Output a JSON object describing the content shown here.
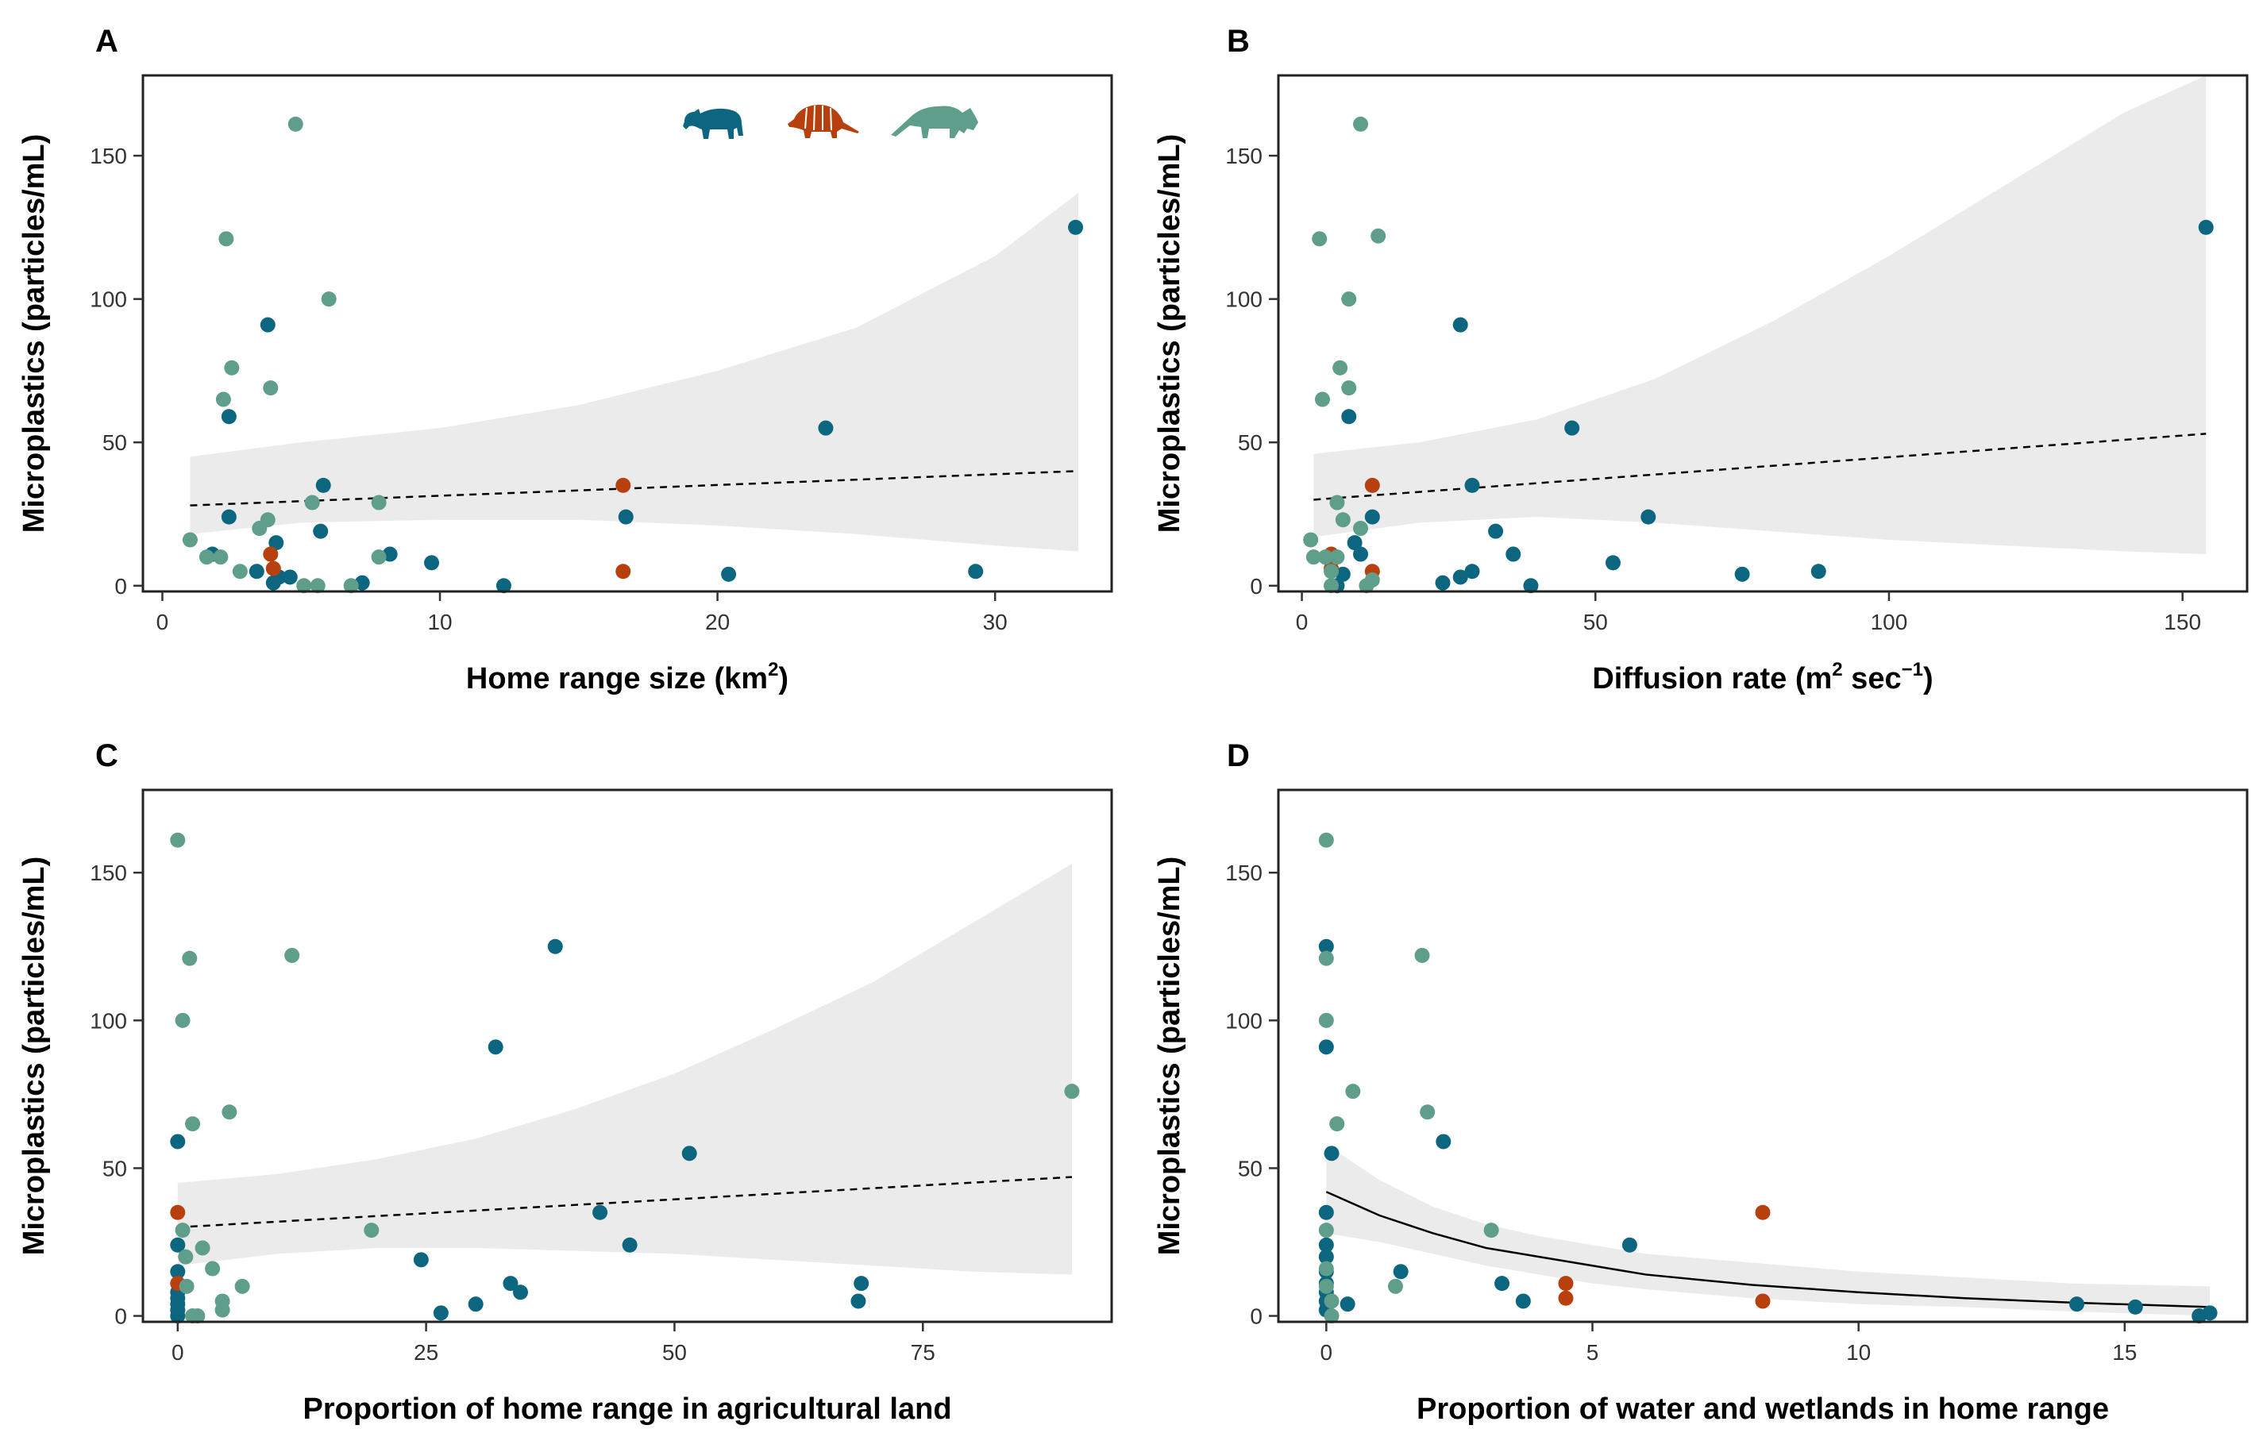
{
  "colors": {
    "species_teal": "#0d6680",
    "species_orange": "#b8400e",
    "species_green": "#5f9e8a",
    "ribbon": "#ebebeb",
    "fit": "#000000"
  },
  "legend_icons": [
    "tapir-icon",
    "armadillo-icon",
    "anteater-icon"
  ],
  "chart_data": [
    {
      "type": "scatter",
      "panel": "A",
      "xlabel_main": "Home range size (km",
      "xlabel_sup": "2",
      "xlabel_tail": ")",
      "ylabel": "Microplastics (particles/mL)",
      "xlim": [
        -0.7,
        34.2
      ],
      "ylim": [
        -2,
        178
      ],
      "xticks": [
        0,
        10,
        20,
        30
      ],
      "yticks": [
        0,
        50,
        100,
        150
      ],
      "grid": false,
      "fit": {
        "style": "dashed",
        "x": [
          1,
          33
        ],
        "y": [
          28,
          40
        ],
        "ribbon_x": [
          1,
          5,
          10,
          15,
          20,
          25,
          30,
          33
        ],
        "ribbon_lo": [
          18,
          22,
          23,
          23,
          21,
          18,
          14,
          12
        ],
        "ribbon_hi": [
          45,
          50,
          55,
          63,
          75,
          90,
          115,
          137
        ]
      },
      "series": [
        {
          "color_key": "species_teal",
          "points": [
            [
              1.8,
              11
            ],
            [
              3.4,
              5
            ],
            [
              3.8,
              91
            ],
            [
              4.0,
              1
            ],
            [
              4.1,
              15
            ],
            [
              4.2,
              3
            ],
            [
              4.6,
              3
            ],
            [
              2.4,
              59
            ],
            [
              2.4,
              24
            ],
            [
              5.7,
              19
            ],
            [
              5.8,
              35
            ],
            [
              7.2,
              1
            ],
            [
              8.2,
              11
            ],
            [
              9.7,
              8
            ],
            [
              12.3,
              0
            ],
            [
              16.7,
              24
            ],
            [
              20.4,
              4
            ],
            [
              23.9,
              55
            ],
            [
              29.3,
              5
            ],
            [
              32.9,
              125
            ]
          ]
        },
        {
          "color_key": "species_orange",
          "points": [
            [
              3.9,
              11
            ],
            [
              4.0,
              6
            ],
            [
              16.6,
              35
            ],
            [
              16.6,
              5
            ]
          ]
        },
        {
          "color_key": "species_green",
          "points": [
            [
              1.0,
              16
            ],
            [
              1.6,
              10
            ],
            [
              2.1,
              10
            ],
            [
              2.2,
              65
            ],
            [
              2.3,
              121
            ],
            [
              2.5,
              76
            ],
            [
              2.8,
              5
            ],
            [
              3.5,
              20
            ],
            [
              3.8,
              23
            ],
            [
              3.9,
              69
            ],
            [
              4.8,
              161
            ],
            [
              5.1,
              0
            ],
            [
              5.4,
              29
            ],
            [
              5.6,
              0
            ],
            [
              6.0,
              100
            ],
            [
              6.8,
              0
            ],
            [
              7.8,
              29
            ],
            [
              7.8,
              10
            ]
          ]
        }
      ]
    },
    {
      "type": "scatter",
      "panel": "B",
      "xlabel_main": "Diffusion rate (m",
      "xlabel_sup": "2",
      "xlabel_tail": " sec",
      "xlabel_sup2": "−1",
      "xlabel_tail2": ")",
      "ylabel": "Microplastics (particles/mL)",
      "xlim": [
        -4,
        161
      ],
      "ylim": [
        -2,
        178
      ],
      "xticks": [
        0,
        50,
        100,
        150
      ],
      "yticks": [
        0,
        50,
        100,
        150
      ],
      "grid": false,
      "fit": {
        "style": "dashed",
        "x": [
          2,
          154
        ],
        "y": [
          30,
          53
        ],
        "ribbon_x": [
          2,
          20,
          40,
          60,
          80,
          100,
          120,
          140,
          154
        ],
        "ribbon_lo": [
          17,
          22,
          24,
          22,
          19,
          16,
          14,
          12,
          11
        ],
        "ribbon_hi": [
          46,
          50,
          58,
          72,
          92,
          115,
          140,
          165,
          178
        ]
      },
      "series": [
        {
          "color_key": "species_teal",
          "points": [
            [
              6,
              0
            ],
            [
              7,
              4
            ],
            [
              8,
              59
            ],
            [
              9,
              15
            ],
            [
              10,
              11
            ],
            [
              12,
              24
            ],
            [
              24,
              1
            ],
            [
              27,
              3
            ],
            [
              27,
              91
            ],
            [
              29,
              5
            ],
            [
              29,
              35
            ],
            [
              33,
              19
            ],
            [
              36,
              11
            ],
            [
              39,
              0
            ],
            [
              46,
              55
            ],
            [
              53,
              8
            ],
            [
              59,
              24
            ],
            [
              75,
              4
            ],
            [
              88,
              5
            ],
            [
              154,
              125
            ]
          ]
        },
        {
          "color_key": "species_orange",
          "points": [
            [
              5,
              11
            ],
            [
              5,
              6
            ],
            [
              12,
              35
            ],
            [
              12,
              5
            ]
          ]
        },
        {
          "color_key": "species_green",
          "points": [
            [
              1.5,
              16
            ],
            [
              2,
              10
            ],
            [
              3,
              121
            ],
            [
              3.5,
              65
            ],
            [
              4,
              10
            ],
            [
              5,
              0
            ],
            [
              5,
              5
            ],
            [
              6,
              29
            ],
            [
              6,
              10
            ],
            [
              6.5,
              76
            ],
            [
              7,
              23
            ],
            [
              8,
              69
            ],
            [
              8,
              100
            ],
            [
              10,
              161
            ],
            [
              10,
              20
            ],
            [
              11,
              0
            ],
            [
              12,
              2
            ],
            [
              13,
              122
            ]
          ]
        }
      ]
    },
    {
      "type": "scatter",
      "panel": "C",
      "xlabel_main": "Proportion of home range in agricultural land",
      "ylabel": "Microplastics (particles/mL)",
      "xlim": [
        -3.5,
        94
      ],
      "ylim": [
        -2,
        178
      ],
      "xticks": [
        0,
        25,
        50,
        75
      ],
      "yticks": [
        0,
        50,
        100,
        150
      ],
      "grid": false,
      "fit": {
        "style": "dashed",
        "x": [
          0,
          90
        ],
        "y": [
          30,
          47
        ],
        "ribbon_x": [
          0,
          10,
          20,
          30,
          40,
          50,
          60,
          70,
          80,
          90
        ],
        "ribbon_lo": [
          17,
          21,
          23,
          23,
          22,
          21,
          19,
          17,
          15,
          14
        ],
        "ribbon_hi": [
          45,
          48,
          53,
          60,
          70,
          82,
          97,
          113,
          133,
          153
        ]
      },
      "series": [
        {
          "color_key": "species_teal",
          "points": [
            [
              0,
              0
            ],
            [
              0,
              2
            ],
            [
              0,
              4
            ],
            [
              0,
              6
            ],
            [
              0,
              8
            ],
            [
              0,
              15
            ],
            [
              0,
              24
            ],
            [
              0,
              59
            ],
            [
              24.5,
              19
            ],
            [
              26.5,
              1
            ],
            [
              30,
              4
            ],
            [
              32,
              91
            ],
            [
              33.5,
              11
            ],
            [
              34.5,
              8
            ],
            [
              38,
              125
            ],
            [
              42.5,
              35
            ],
            [
              45.5,
              24
            ],
            [
              51.5,
              55
            ],
            [
              68.5,
              5
            ],
            [
              68.8,
              11
            ]
          ]
        },
        {
          "color_key": "species_orange",
          "points": [
            [
              0,
              35
            ],
            [
              0,
              11
            ]
          ]
        },
        {
          "color_key": "species_green",
          "points": [
            [
              0,
              161
            ],
            [
              0.5,
              100
            ],
            [
              0.5,
              29
            ],
            [
              0.8,
              20
            ],
            [
              0.9,
              10
            ],
            [
              1.2,
              121
            ],
            [
              1.5,
              65
            ],
            [
              1.5,
              0
            ],
            [
              2,
              0
            ],
            [
              2.5,
              23
            ],
            [
              3.5,
              16
            ],
            [
              4.5,
              5
            ],
            [
              4.5,
              2
            ],
            [
              5.2,
              69
            ],
            [
              6.5,
              10
            ],
            [
              11.5,
              122
            ],
            [
              19.5,
              29
            ],
            [
              90,
              76
            ]
          ]
        }
      ]
    },
    {
      "type": "scatter",
      "panel": "D",
      "xlabel_main": "Proportion of water and wetlands in home range",
      "ylabel": "Microplastics (particles/mL)",
      "xlim": [
        -0.9,
        17.3
      ],
      "ylim": [
        -2,
        178
      ],
      "xticks": [
        0,
        5,
        10,
        15
      ],
      "yticks": [
        0,
        50,
        100,
        150
      ],
      "grid": false,
      "fit": {
        "style": "solid",
        "x": [
          0,
          1,
          2,
          3,
          4,
          5,
          6,
          8,
          10,
          12,
          14,
          16.6
        ],
        "y": [
          42,
          34,
          28,
          23,
          20,
          17,
          14,
          10.5,
          8,
          6,
          4.5,
          3
        ],
        "ribbon_x": [
          0,
          1,
          2,
          3,
          4,
          5,
          6,
          8,
          10,
          12,
          14,
          16.6
        ],
        "ribbon_lo": [
          28,
          25,
          21,
          17,
          14,
          11,
          9,
          6,
          4,
          3,
          1.5,
          0
        ],
        "ribbon_hi": [
          58,
          46,
          37,
          31,
          27,
          24,
          21,
          18,
          15,
          13,
          11,
          10
        ]
      },
      "series": [
        {
          "color_key": "species_teal",
          "points": [
            [
              0,
              125
            ],
            [
              0,
              91
            ],
            [
              0,
              35
            ],
            [
              0,
              24
            ],
            [
              0,
              20
            ],
            [
              0,
              15
            ],
            [
              0,
              11
            ],
            [
              0,
              8
            ],
            [
              0,
              5
            ],
            [
              0,
              2
            ],
            [
              0.1,
              55
            ],
            [
              0.4,
              4
            ],
            [
              1.4,
              15
            ],
            [
              2.2,
              59
            ],
            [
              3.3,
              11
            ],
            [
              3.7,
              5
            ],
            [
              5.7,
              24
            ],
            [
              14.1,
              4
            ],
            [
              15.2,
              3
            ],
            [
              16.4,
              0
            ],
            [
              16.6,
              1
            ]
          ]
        },
        {
          "color_key": "species_orange",
          "points": [
            [
              4.5,
              11
            ],
            [
              4.5,
              6
            ],
            [
              8.2,
              35
            ],
            [
              8.2,
              5
            ]
          ]
        },
        {
          "color_key": "species_green",
          "points": [
            [
              0,
              161
            ],
            [
              0,
              121
            ],
            [
              0,
              100
            ],
            [
              0,
              29
            ],
            [
              0,
              16
            ],
            [
              0,
              10
            ],
            [
              0.1,
              0
            ],
            [
              0.1,
              5
            ],
            [
              0.2,
              65
            ],
            [
              0.5,
              76
            ],
            [
              1.3,
              10
            ],
            [
              1.8,
              122
            ],
            [
              1.9,
              69
            ],
            [
              3.1,
              29
            ]
          ]
        }
      ]
    }
  ]
}
